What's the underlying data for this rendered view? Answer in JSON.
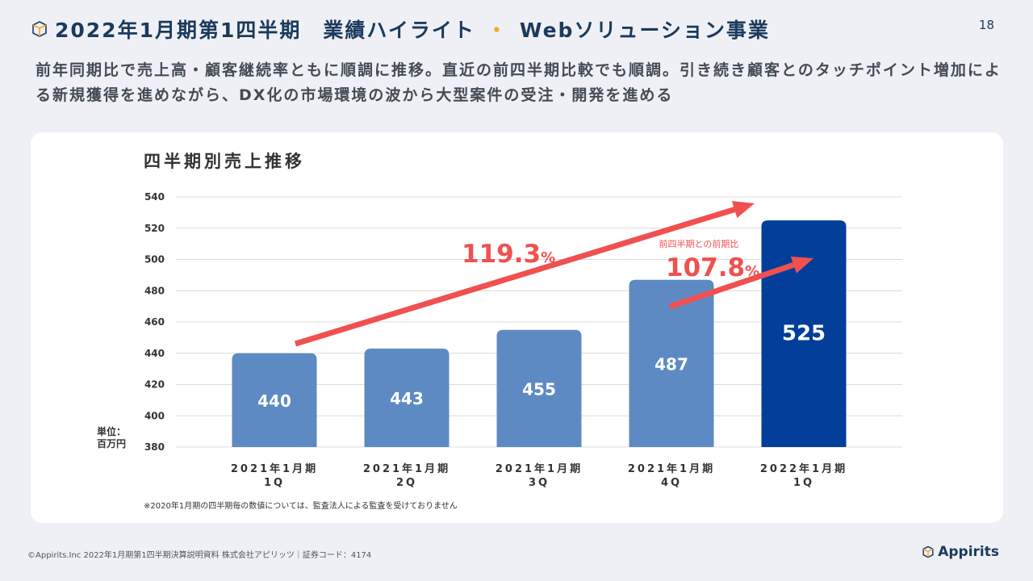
{
  "header": {
    "title_main": "2022年1月期第1四半期　業績ハイライト",
    "title_dot": "・",
    "title_sub": "Webソリューション事業",
    "page_number": "18"
  },
  "lead": "前年同期比で売上高・顧客継続率ともに順調に推移。直近の前四半期比較でも順調。引き続き顧客とのタッチポイント増加による新規獲得を進めながら、DX化の市場環境の波から大型案件の受注・開発を進める",
  "chart_data": {
    "type": "bar",
    "title": "四半期別売上推移",
    "categories": [
      "2021年1月期\n1Q",
      "2021年1月期\n2Q",
      "2021年1月期\n3Q",
      "2021年1月期\n4Q",
      "2022年1月期\n1Q"
    ],
    "values": [
      440,
      443,
      455,
      487,
      525
    ],
    "data_labels": [
      "440",
      "443",
      "455",
      "487",
      "525"
    ],
    "ylim": [
      380,
      540
    ],
    "yticks": [
      "380",
      "400",
      "420",
      "440",
      "460",
      "480",
      "500",
      "520",
      "540"
    ],
    "grid": true,
    "colors": {
      "bar": "#5e8ac4",
      "highlight": "#023e9a",
      "arrow": "#f05050"
    },
    "annotations": {
      "yoy": "119.3",
      "yoy_unit": "%",
      "qoq_caption": "前四半期との前期比",
      "qoq": "107.8",
      "qoq_unit": "%"
    },
    "unit_label": "単位：\n百万円"
  },
  "note": "※2020年1月期の四半期毎の数値については、監査法人による監査を受けておりません",
  "footer": {
    "text": "©Appirits.Inc  2022年1月期第1四半期決算説明資料  株式会社アピリッツ｜証券コード：4174",
    "logo": "Appirits"
  }
}
